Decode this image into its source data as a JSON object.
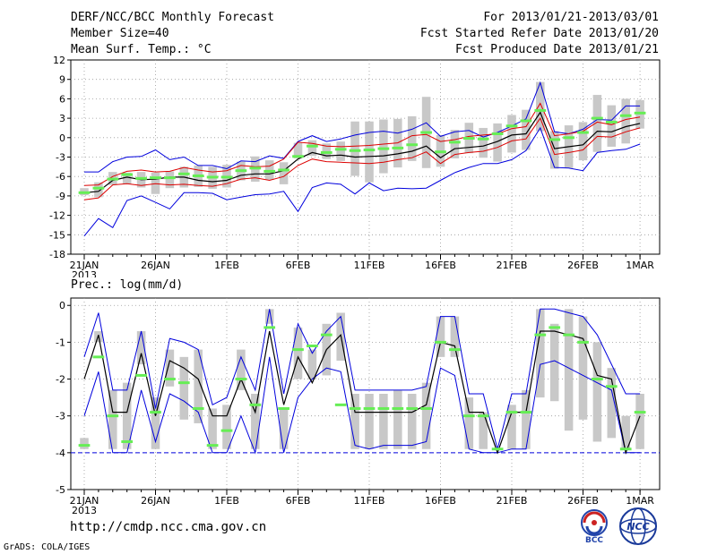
{
  "header": {
    "title": "DERF/NCC/BCC Monthly Forecast",
    "member_size": "Member Size=40",
    "variable1": "Mean Surf. Temp.: °C",
    "period": "For 2013/01/21-2013/03/01",
    "started": "Fcst Started Refer Date 2013/01/20",
    "produced": "Fcst Produced Date 2013/01/21"
  },
  "variable2": "Prec.: log(mm/d)",
  "footer": {
    "url": "http://cmdp.ncc.cma.gov.cn",
    "grads": "GrADS: COLA/IGES"
  },
  "logos": {
    "bcc": "BCC",
    "ncc": "NCC"
  },
  "colors": {
    "envelope": "#0000dd",
    "lower": "#dd0000",
    "mean": "#000000",
    "box": "#c8c8c8",
    "median": "#66ee55",
    "grid": "#999999"
  },
  "chart_data": [
    {
      "type": "line",
      "title": "Mean Surf. Temp.: °C",
      "ylim": [
        -18,
        12
      ],
      "yticks": [
        "12",
        "9",
        "6",
        "3",
        "0",
        "-3",
        "-6",
        "-9",
        "-12",
        "-15",
        "-18"
      ],
      "x_tick_labels": [
        "21JAN",
        "26JAN",
        "1FEB",
        "6FEB",
        "11FEB",
        "16FEB",
        "21FEB",
        "26FEB",
        "1MAR"
      ],
      "x_year": "2013",
      "days": 40,
      "series": [
        {
          "name": "max",
          "values": [
            -5.3,
            -5.3,
            -3.7,
            -3.0,
            -2.9,
            -1.9,
            -3.4,
            -3.0,
            -4.3,
            -4.3,
            -4.8,
            -3.6,
            -3.7,
            -2.8,
            -3.2,
            -0.6,
            0.3,
            -0.6,
            -0.2,
            0.4,
            0.8,
            1.0,
            0.7,
            1.3,
            2.3,
            0.2,
            0.9,
            1.1,
            0.1,
            0.8,
            1.8,
            2.9,
            8.5,
            0.9,
            0.6,
            1.3,
            2.8,
            2.7,
            4.9,
            4.9
          ]
        },
        {
          "name": "q75",
          "values": [
            -7.4,
            -7.3,
            -6.0,
            -5.2,
            -5.0,
            -5.3,
            -5.2,
            -4.6,
            -5.0,
            -5.3,
            -5.1,
            -4.3,
            -4.5,
            -4.4,
            -3.3,
            -0.7,
            -0.9,
            -1.3,
            -1.4,
            -1.3,
            -1.2,
            -1.0,
            -0.8,
            0.3,
            0.5,
            -0.6,
            -0.3,
            0.2,
            0.4,
            0.6,
            1.4,
            1.7,
            5.3,
            0.3,
            0.6,
            1.0,
            2.4,
            2.0,
            2.8,
            3.2
          ]
        },
        {
          "name": "mean",
          "values": [
            -8.5,
            -8.3,
            -6.6,
            -6.1,
            -6.5,
            -6.4,
            -6.1,
            -6.1,
            -6.6,
            -6.8,
            -6.6,
            -5.8,
            -5.6,
            -5.6,
            -5.1,
            -3.3,
            -2.3,
            -2.8,
            -2.7,
            -3.0,
            -2.9,
            -2.8,
            -2.5,
            -2.1,
            -1.3,
            -3.1,
            -1.7,
            -1.5,
            -1.3,
            -0.6,
            0.4,
            0.6,
            3.9,
            -1.7,
            -1.4,
            -1.1,
            1.0,
            0.9,
            1.7,
            2.2
          ]
        },
        {
          "name": "q25",
          "values": [
            -9.6,
            -9.3,
            -7.3,
            -7.1,
            -7.4,
            -7.1,
            -7.3,
            -7.2,
            -7.4,
            -7.5,
            -7.1,
            -6.4,
            -6.2,
            -6.6,
            -6.0,
            -4.3,
            -3.3,
            -3.7,
            -3.8,
            -3.9,
            -4.0,
            -3.8,
            -3.4,
            -3.1,
            -2.2,
            -4.0,
            -2.6,
            -2.3,
            -2.1,
            -1.5,
            -0.5,
            -0.2,
            3.0,
            -2.6,
            -2.3,
            -1.9,
            0.2,
            0.1,
            0.9,
            1.5
          ]
        },
        {
          "name": "min",
          "values": [
            -15.2,
            -12.5,
            -13.9,
            -9.7,
            -9.0,
            -10.0,
            -11.0,
            -8.5,
            -8.5,
            -8.6,
            -9.6,
            -9.2,
            -8.8,
            -8.7,
            -8.3,
            -11.4,
            -7.7,
            -7.0,
            -7.2,
            -8.7,
            -7.0,
            -8.2,
            -7.8,
            -7.9,
            -7.8,
            -6.6,
            -5.4,
            -4.6,
            -4.0,
            -4.0,
            -3.4,
            -2.0,
            1.5,
            -4.6,
            -4.7,
            -5.1,
            -2.3,
            -2.0,
            -1.8,
            -1.0
          ]
        },
        {
          "name": "box_lo",
          "values": [
            -8.9,
            -9.2,
            -7.3,
            -7.2,
            -7.7,
            -8.7,
            -7.8,
            -7.7,
            -7.6,
            -7.9,
            -7.7,
            -6.6,
            -6.8,
            -6.5,
            -7.2,
            -3.2,
            -2.8,
            -3.3,
            -3.6,
            -5.9,
            -6.9,
            -5.5,
            -4.6,
            -3.6,
            -4.7,
            -4.5,
            -3.2,
            -2.4,
            -3.1,
            -3.7,
            -2.3,
            -1.9,
            1.0,
            -4.8,
            -4.7,
            -3.5,
            -2.2,
            -1.4,
            -0.9,
            1.4
          ]
        },
        {
          "name": "box_hi",
          "values": [
            -7.8,
            -6.9,
            -5.3,
            -5.4,
            -5.3,
            -5.4,
            -5.2,
            -4.5,
            -4.3,
            -4.5,
            -4.2,
            -3.7,
            -2.9,
            -3.5,
            -3.8,
            -0.8,
            -0.4,
            -0.9,
            -0.6,
            2.5,
            2.5,
            2.8,
            2.9,
            3.3,
            6.3,
            0.4,
            1.2,
            2.3,
            1.5,
            2.2,
            3.5,
            4.3,
            8.6,
            1.0,
            1.9,
            2.4,
            6.6,
            5.0,
            6.0,
            5.8
          ]
        },
        {
          "name": "median",
          "values": [
            -8.5,
            -7.8,
            -6.4,
            -5.7,
            -6.3,
            -6.2,
            -6.2,
            -5.6,
            -5.9,
            -6.1,
            -6.1,
            -5.1,
            -4.7,
            -5.2,
            -5.0,
            -2.9,
            -1.3,
            -2.3,
            -1.8,
            -2.0,
            -1.9,
            -1.7,
            -1.6,
            -1.1,
            0.8,
            -2.2,
            -0.7,
            -0.1,
            -0.2,
            0.6,
            1.8,
            2.6,
            4.2,
            -0.3,
            0.0,
            0.8,
            3.0,
            2.4,
            3.4,
            3.8
          ]
        }
      ]
    },
    {
      "type": "line",
      "title": "Prec.: log(mm/d)",
      "ylim": [
        -5,
        0.2
      ],
      "yticks": [
        "0",
        "-1",
        "-2",
        "-3",
        "-4",
        "-5"
      ],
      "x_tick_labels": [
        "21JAN",
        "26JAN",
        "1FEB",
        "6FEB",
        "11FEB",
        "16FEB",
        "21FEB",
        "26FEB",
        "1MAR"
      ],
      "x_year": "2013",
      "days": 40,
      "baseline": -4,
      "series": [
        {
          "name": "max",
          "values": [
            -1.4,
            -0.2,
            -2.3,
            -2.3,
            -0.7,
            -2.8,
            -0.9,
            -1.0,
            -1.2,
            -2.7,
            -2.5,
            -1.4,
            -2.3,
            -0.1,
            -2.4,
            -0.5,
            -1.3,
            -0.7,
            -0.3,
            -2.3,
            -2.3,
            -2.3,
            -2.3,
            -2.3,
            -2.2,
            -0.3,
            -0.3,
            -2.4,
            -2.4,
            -3.9,
            -2.4,
            -2.4,
            -0.1,
            -0.1,
            -0.2,
            -0.3,
            -0.8,
            -1.6,
            -2.4,
            -2.4
          ]
        },
        {
          "name": "mean",
          "values": [
            -2.0,
            -0.8,
            -2.9,
            -2.9,
            -1.3,
            -3.0,
            -1.5,
            -1.7,
            -2.0,
            -3.0,
            -3.0,
            -2.0,
            -2.9,
            -0.7,
            -2.7,
            -1.4,
            -2.1,
            -1.2,
            -0.8,
            -2.9,
            -2.9,
            -2.9,
            -2.9,
            -2.9,
            -2.7,
            -1.0,
            -1.1,
            -2.9,
            -2.9,
            -4.0,
            -2.9,
            -2.9,
            -0.7,
            -0.7,
            -0.8,
            -0.9,
            -1.9,
            -2.0,
            -4.0,
            -3.0
          ]
        },
        {
          "name": "min",
          "values": [
            -3.0,
            -1.8,
            -4.0,
            -4.0,
            -2.3,
            -3.7,
            -2.4,
            -2.6,
            -2.9,
            -4.0,
            -4.0,
            -3.0,
            -4.0,
            -1.4,
            -4.0,
            -2.5,
            -2.0,
            -1.7,
            -1.8,
            -3.8,
            -3.9,
            -3.8,
            -3.8,
            -3.8,
            -3.7,
            -1.7,
            -1.9,
            -3.9,
            -4.0,
            -4.0,
            -3.9,
            -3.9,
            -1.6,
            -1.5,
            -1.7,
            -1.9,
            -2.1,
            -2.3,
            -4.0,
            -4.0
          ]
        },
        {
          "name": "box_lo",
          "values": [
            -3.9,
            -1.0,
            -3.9,
            -3.9,
            -1.6,
            -3.9,
            -2.2,
            -3.1,
            -3.2,
            -3.9,
            -3.9,
            -2.3,
            -3.9,
            -0.5,
            -3.9,
            -2.0,
            -2.0,
            -1.9,
            -1.5,
            -3.9,
            -3.9,
            -3.9,
            -3.9,
            -3.9,
            -3.9,
            -1.4,
            -1.4,
            -3.9,
            -3.9,
            -3.9,
            -3.9,
            -3.9,
            -2.5,
            -2.6,
            -3.4,
            -3.1,
            -3.7,
            -3.6,
            -3.9,
            -3.9
          ]
        },
        {
          "name": "box_hi",
          "values": [
            -3.6,
            -0.7,
            -2.3,
            -2.1,
            -0.7,
            -2.5,
            -1.2,
            -1.4,
            -1.2,
            -2.8,
            -2.7,
            -1.2,
            -2.4,
            -0.1,
            -2.8,
            -0.6,
            -1.2,
            -0.5,
            -0.2,
            -2.4,
            -2.4,
            -2.4,
            -2.3,
            -2.4,
            -2.1,
            -0.3,
            -0.3,
            -2.5,
            -2.9,
            -3.9,
            -2.7,
            -2.3,
            -0.1,
            -0.5,
            -0.1,
            -0.3,
            -1.0,
            -1.7,
            -3.0,
            -2.4
          ]
        },
        {
          "name": "median",
          "values": [
            -3.8,
            -1.4,
            -3.0,
            -3.7,
            -1.9,
            -2.9,
            -2.0,
            -2.1,
            -2.8,
            -3.8,
            -3.4,
            -2.0,
            -2.7,
            -0.6,
            -2.8,
            -1.2,
            -1.1,
            -0.8,
            -2.7,
            -2.8,
            -2.8,
            -2.8,
            -2.8,
            -2.8,
            -2.8,
            -1.0,
            -1.2,
            -3.0,
            -3.0,
            -3.9,
            -2.9,
            -2.9,
            -0.8,
            -0.6,
            -0.8,
            -1.0,
            -2.0,
            -2.2,
            -3.9,
            -2.9
          ]
        }
      ]
    }
  ]
}
